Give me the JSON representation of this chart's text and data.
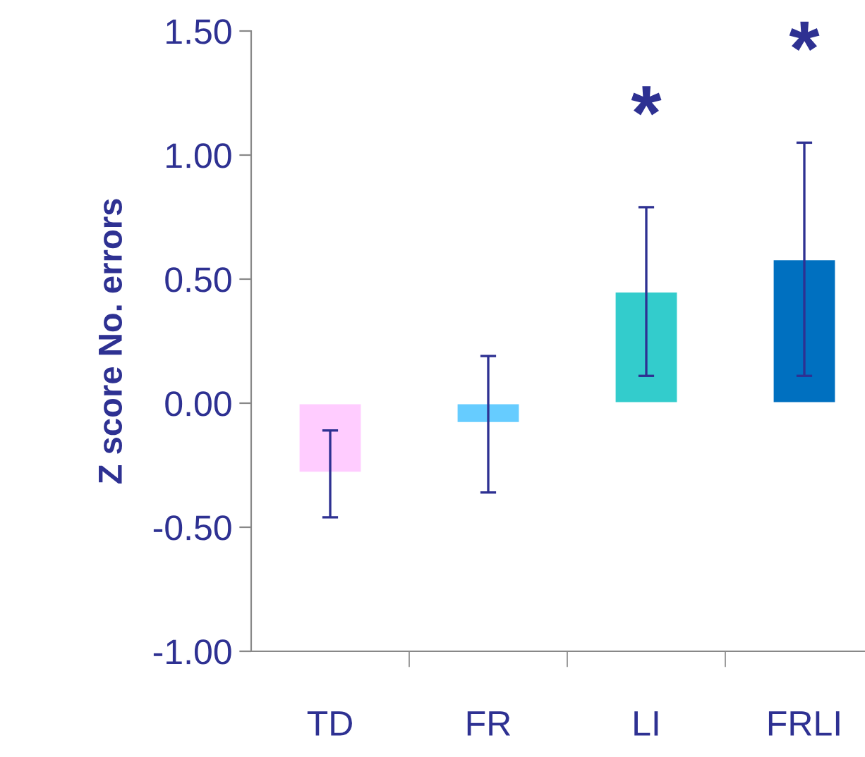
{
  "chart_data": {
    "type": "bar",
    "ylabel": "Z score No. errors",
    "categories": [
      "TD",
      "FR",
      "LI",
      "FRLI"
    ],
    "values": [
      -0.28,
      -0.08,
      0.45,
      0.58
    ],
    "colors": [
      "#ffccff",
      "#66ccff",
      "#33cccc",
      "#0070c0"
    ],
    "errors": [
      [
        -0.46,
        -0.11
      ],
      [
        -0.36,
        0.19
      ],
      [
        0.11,
        0.79
      ],
      [
        0.11,
        1.05
      ]
    ],
    "ylim": [
      -1.0,
      1.5
    ],
    "yticks": [
      {
        "value": -1.0,
        "label": "-1.00"
      },
      {
        "value": -0.5,
        "label": "-0.50"
      },
      {
        "value": 0.0,
        "label": "0.00"
      },
      {
        "value": 0.5,
        "label": "0.50"
      },
      {
        "value": 1.0,
        "label": "1.00"
      },
      {
        "value": 1.5,
        "label": "1.50"
      }
    ],
    "annotations": [
      "*",
      "*"
    ],
    "grid": false,
    "legend": false
  }
}
